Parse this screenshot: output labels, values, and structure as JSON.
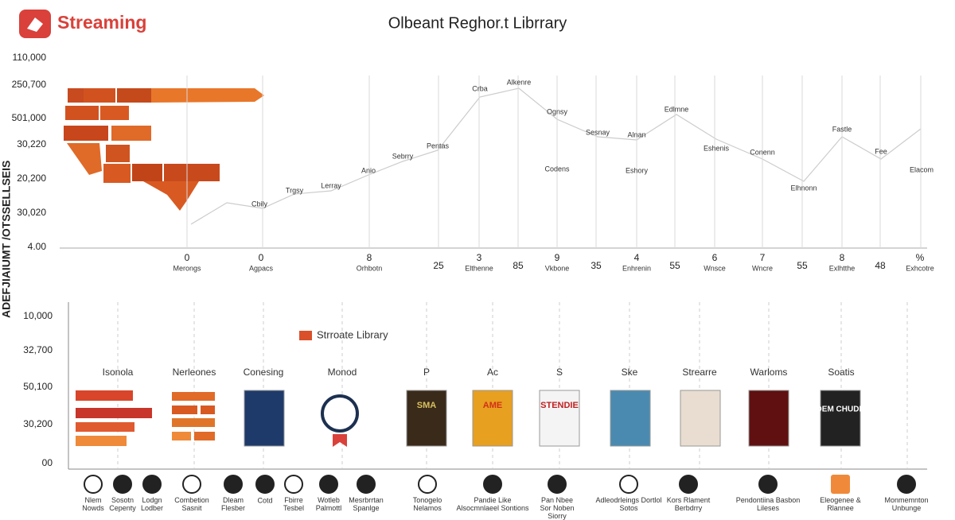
{
  "header": {
    "logo": "Streaming",
    "title": "Olbeant Reghor.t Librrary"
  },
  "side_label": "ADEFJIAIUMT /OTSSELLSEIS",
  "top_panel": {
    "y_labels": [
      "110,000",
      "250,700",
      "501,000",
      "30,220",
      "20,200",
      "30,020",
      "4.00"
    ],
    "point_labels": [
      "Cbily",
      "Trgsy",
      "Lerray",
      "Anio",
      "Sebrry",
      "Pentas",
      "Crba",
      "Alkenre",
      "Ognsy",
      "Sesnay",
      "Alnan",
      "Edlmne",
      "Eshenis",
      "Conenn",
      "Elhnonn",
      "Fastle",
      "Fee",
      "Codens",
      "Eshory",
      "Elacom"
    ],
    "x_labels": [
      [
        "0",
        "Merongs"
      ],
      [
        "0",
        "Agpacs"
      ],
      [
        "8",
        "Orhbotn"
      ],
      [
        "25",
        ""
      ],
      [
        "3",
        "Elthenne"
      ],
      [
        "85",
        ""
      ],
      [
        "9",
        "Vkbone"
      ],
      [
        "35",
        ""
      ],
      [
        "4",
        "Enhrenin"
      ],
      [
        "55",
        ""
      ],
      [
        "6",
        "Wnsce"
      ],
      [
        "7",
        "Wncre"
      ],
      [
        "55",
        ""
      ],
      [
        "8",
        "Exlhtthe"
      ],
      [
        "48",
        ""
      ],
      [
        "%",
        "Exhcotre"
      ]
    ]
  },
  "bottom_panel": {
    "y_labels": [
      "10,000",
      "32,700",
      "50,100",
      "30,200",
      "00"
    ],
    "legend": "Strroate Library",
    "columns": [
      "Isonola",
      "Nerleones",
      "Conesing",
      "Monod",
      "P",
      "Ac",
      "S",
      "Ske",
      "Strearre",
      "Warloms",
      "Soatis"
    ],
    "posters": [
      "SMA",
      "AME",
      "STENDIE",
      "MADEM CHUDDES"
    ],
    "icons": [
      "Nlem Nowds",
      "Sosotn Cepenty",
      "Lodgn Lodber",
      "Combetion Sasnit",
      "Dleam Flesber",
      "Cotd",
      "Fbirre Tesbel",
      "Wotleb Palmottl",
      "Mesrbrrtan Spanlge",
      "Tonogelo Nelamos",
      "Pandie Like Alsocmnlaeel Sontions",
      "Pan Nbee Sor Noben Siorry",
      "Adleodrleings Dortlol Sotos",
      "Kors Rlament Berbdrry",
      "Pendontiina Basbon Lileses",
      "Eleogenee & Rlannee",
      "Monmemnton Unbunge"
    ]
  }
}
